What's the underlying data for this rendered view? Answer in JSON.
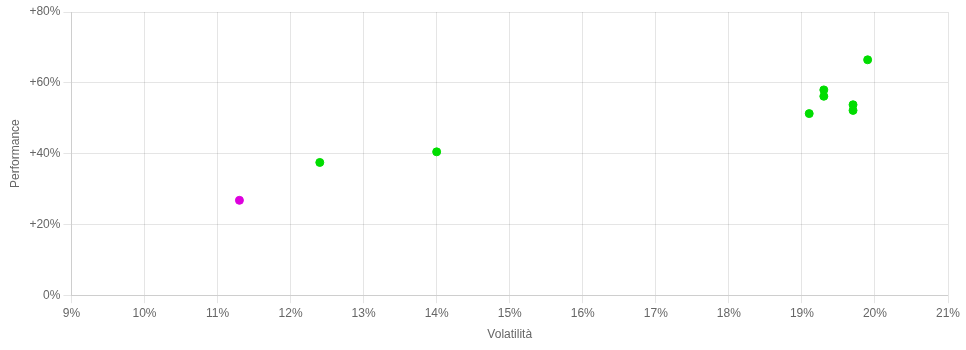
{
  "chart_data": {
    "type": "scatter",
    "xlabel": "Volatilità",
    "ylabel": "Performance",
    "xlim": [
      0.09,
      0.21
    ],
    "ylim": [
      0.0,
      0.8
    ],
    "xticks": [
      {
        "value": 0.09,
        "label": "9%"
      },
      {
        "value": 0.1,
        "label": "10%"
      },
      {
        "value": 0.11,
        "label": "11%"
      },
      {
        "value": 0.12,
        "label": "12%"
      },
      {
        "value": 0.13,
        "label": "13%"
      },
      {
        "value": 0.14,
        "label": "14%"
      },
      {
        "value": 0.15,
        "label": "15%"
      },
      {
        "value": 0.16,
        "label": "16%"
      },
      {
        "value": 0.17,
        "label": "17%"
      },
      {
        "value": 0.18,
        "label": "18%"
      },
      {
        "value": 0.19,
        "label": "19%"
      },
      {
        "value": 0.2,
        "label": "20%"
      },
      {
        "value": 0.21,
        "label": "21%"
      }
    ],
    "yticks": [
      {
        "value": 0.0,
        "label": "0%"
      },
      {
        "value": 0.2,
        "label": "+20%"
      },
      {
        "value": 0.4,
        "label": "+40%"
      },
      {
        "value": 0.6,
        "label": "+60%"
      },
      {
        "value": 0.8,
        "label": "+80%"
      }
    ],
    "grid": true,
    "series": [
      {
        "color": "#00dd00",
        "marker": "circle",
        "x": [
          0.124,
          0.14,
          0.193,
          0.193,
          0.191,
          0.197,
          0.197,
          0.199
        ],
        "values": [
          0.375,
          0.405,
          0.58,
          0.562,
          0.513,
          0.538,
          0.522,
          0.665
        ]
      },
      {
        "color": "#dd00dd",
        "marker": "circle",
        "x": [
          0.113
        ],
        "values": [
          0.268
        ]
      }
    ]
  }
}
